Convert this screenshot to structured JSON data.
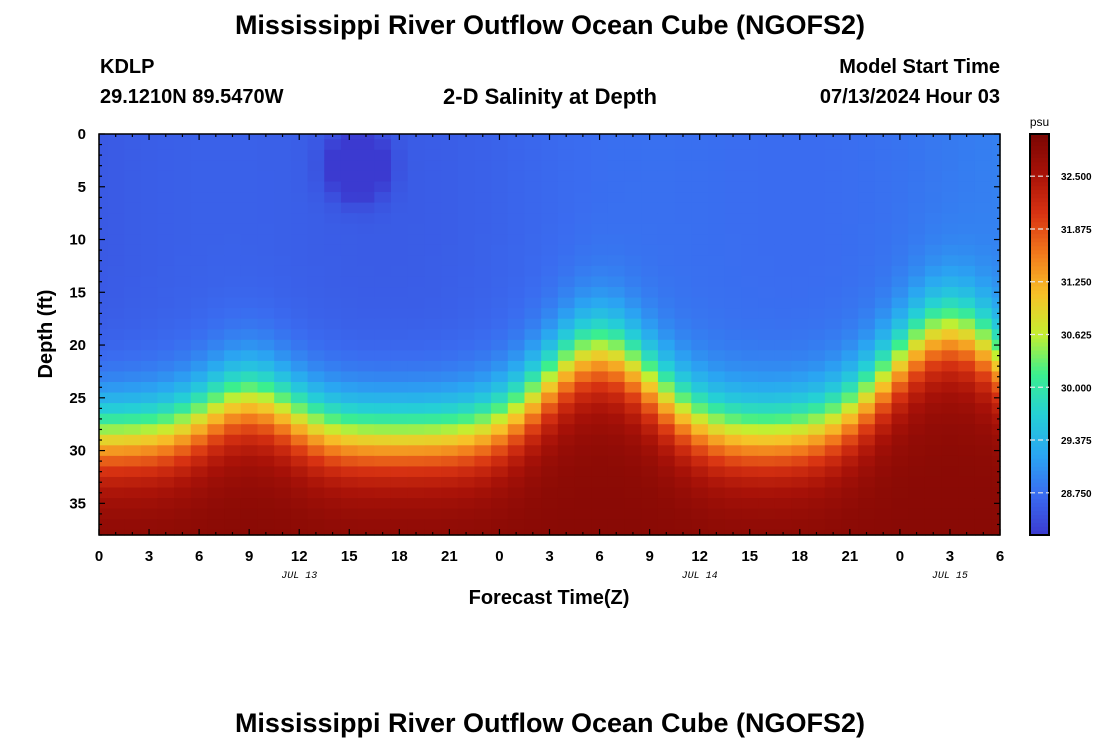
{
  "header": {
    "title": "Mississippi River Outflow Ocean Cube (NGOFS2)",
    "station_id": "KDLP",
    "coords": "29.1210N  89.5470W",
    "plot_title": "2-D Salinity at Depth",
    "model_start_label": "Model Start Time",
    "model_start_value": "07/13/2024 Hour 03"
  },
  "footer": {
    "title": "Mississippi River Outflow Ocean Cube (NGOFS2)"
  },
  "chart_data": {
    "type": "heatmap",
    "title": "2-D Salinity at Depth",
    "xlabel": "Forecast Time(Z)",
    "ylabel": "Depth (ft)",
    "x_range_hours": [
      0,
      54
    ],
    "y_range_ft": [
      0,
      38
    ],
    "x_tick_labels": [
      "0",
      "3",
      "6",
      "9",
      "12",
      "15",
      "18",
      "21",
      "0",
      "3",
      "6",
      "9",
      "12",
      "15",
      "18",
      "21",
      "0",
      "3",
      "6"
    ],
    "y_tick_labels": [
      "0",
      "5",
      "10",
      "15",
      "20",
      "25",
      "30",
      "35"
    ],
    "date_labels": [
      {
        "label": "JUL 13",
        "hour": 12
      },
      {
        "label": "JUL 14",
        "hour": 36
      },
      {
        "label": "JUL 15",
        "hour": 51
      }
    ],
    "colorbar": {
      "unit": "psu",
      "min": 28.25,
      "max": 33.0,
      "tick_labels": [
        "32.500",
        "31.875",
        "31.250",
        "30.625",
        "30.000",
        "29.375",
        "28.750"
      ]
    },
    "colors": [
      "#3b3ad0",
      "#3a6cf0",
      "#2aa6f2",
      "#25cfd6",
      "#3bef8e",
      "#c4ef30",
      "#f7c228",
      "#f27a1c",
      "#d83312",
      "#a81208",
      "#7a0603"
    ]
  }
}
